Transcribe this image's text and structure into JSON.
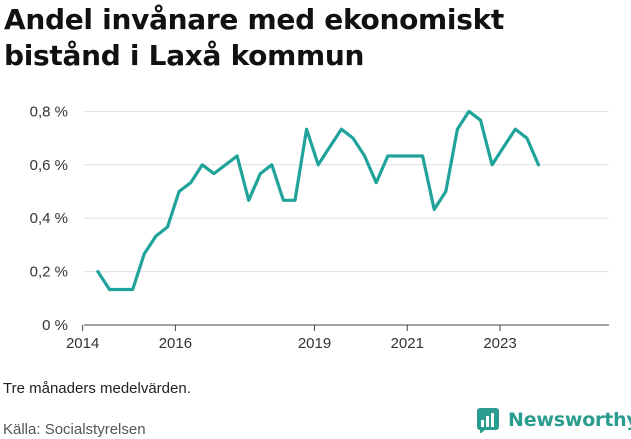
{
  "title": "Andel invånare med ekonomiskt bistånd i Laxå kommun",
  "note": "Tre månaders medelvärden.",
  "source": "Källa: Socialstyrelsen",
  "brand": {
    "name": "Newsworthy",
    "icon": "newsworthy-chart-icon",
    "color": "#2a9d8f"
  },
  "colors": {
    "line": "#20a39a",
    "grid": "#e0e0e0",
    "axis": "#444444"
  },
  "chart_data": {
    "type": "line",
    "title": "Andel invånare med ekonomiskt bistånd i Laxå kommun",
    "xlabel": "",
    "ylabel": "",
    "grid": true,
    "legend": "none",
    "xlim": [
      2013.9,
      2025.35
    ],
    "ylim": [
      0,
      0.85
    ],
    "x_ticks": [
      {
        "value": 2014,
        "label": "2014"
      },
      {
        "value": 2016,
        "label": "2016"
      },
      {
        "value": 2019,
        "label": "2019"
      },
      {
        "value": 2021,
        "label": "2021"
      },
      {
        "value": 2023,
        "label": "2023"
      }
    ],
    "y_ticks": [
      {
        "value": 0,
        "label": "0 %"
      },
      {
        "value": 0.2,
        "label": "0,2 %"
      },
      {
        "value": 0.4,
        "label": "0,4 %"
      },
      {
        "value": 0.6,
        "label": "0,6 %"
      },
      {
        "value": 0.8,
        "label": "0,8 %"
      }
    ],
    "series": [
      {
        "x": [
          2014.33,
          2014.58,
          2014.83,
          2015.08,
          2015.33,
          2015.58,
          2015.83,
          2016.08,
          2016.33,
          2016.58,
          2016.83,
          2017.08,
          2017.33,
          2017.58,
          2017.83,
          2018.08,
          2018.33,
          2018.58,
          2018.83,
          2019.08,
          2019.33,
          2019.58,
          2019.83,
          2020.08,
          2020.33,
          2020.58,
          2020.83,
          2021.08,
          2021.33,
          2021.58,
          2021.83,
          2022.08,
          2022.33,
          2022.58,
          2022.83,
          2023.08,
          2023.33,
          2023.58,
          2023.83
        ],
        "values": [
          0.2,
          0.133,
          0.133,
          0.133,
          0.267,
          0.333,
          0.367,
          0.5,
          0.533,
          0.6,
          0.567,
          0.6,
          0.633,
          0.467,
          0.567,
          0.6,
          0.467,
          0.467,
          0.733,
          0.6,
          0.667,
          0.733,
          0.7,
          0.633,
          0.533,
          0.633,
          0.633,
          0.633,
          0.633,
          0.433,
          0.5,
          0.733,
          0.8,
          0.767,
          0.6,
          0.667,
          0.733,
          0.7,
          0.6
        ]
      }
    ]
  }
}
